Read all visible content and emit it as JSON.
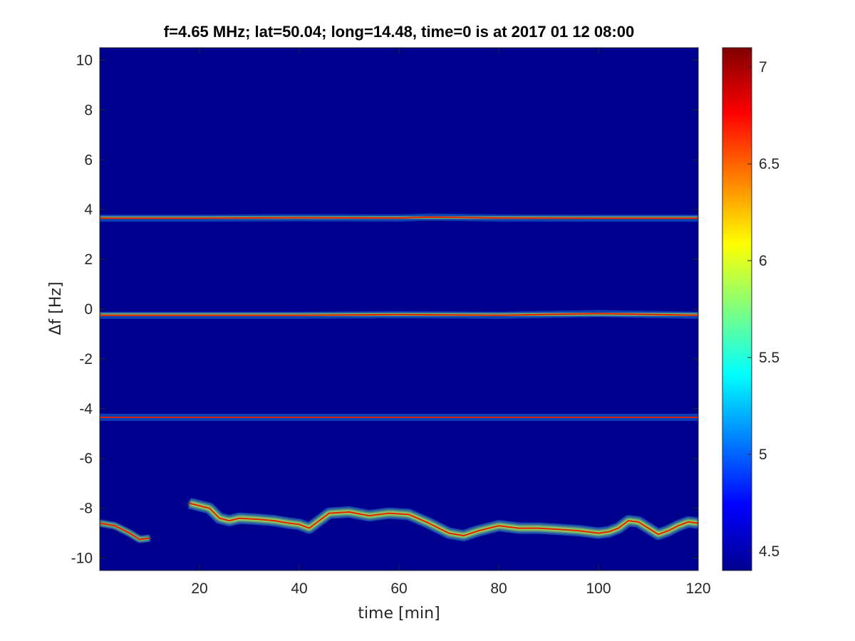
{
  "chart_data": {
    "type": "heatmap",
    "title": "f=4.65 MHz;  lat=50.04; long=14.48, time=0 is at 2017 01 12 08:00",
    "xlabel": "time [min]",
    "ylabel": "Δf [Hz]",
    "xlim": [
      0,
      120
    ],
    "ylim": [
      -10.5,
      10.5
    ],
    "xticks": [
      20,
      40,
      60,
      80,
      100,
      120
    ],
    "yticks": [
      10,
      8,
      6,
      4,
      2,
      0,
      -2,
      -4,
      -6,
      -8,
      -10
    ],
    "xtick_labels": [
      "20",
      "40",
      "60",
      "80",
      "100",
      "120"
    ],
    "ytick_labels": [
      "10",
      "8",
      "6",
      "4",
      "2",
      "0",
      "-2",
      "-4",
      "-6",
      "-8",
      "-10"
    ],
    "colormap": "jet",
    "background_color": "#00008f",
    "colorbar": {
      "range": [
        4.4,
        7.1
      ],
      "ticks": [
        4.5,
        5,
        5.5,
        6,
        6.5,
        7
      ],
      "tick_labels": [
        "4.5",
        "5",
        "5.5",
        "6",
        "6.5",
        "7"
      ]
    },
    "series": [
      {
        "values": [
          [
            0,
            3.65
          ],
          [
            20,
            3.65
          ],
          [
            40,
            3.67
          ],
          [
            60,
            3.66
          ],
          [
            66,
            3.7
          ],
          [
            80,
            3.66
          ],
          [
            100,
            3.65
          ],
          [
            120,
            3.65
          ]
        ]
      },
      {
        "values": [
          [
            0,
            -0.25
          ],
          [
            20,
            -0.25
          ],
          [
            40,
            -0.25
          ],
          [
            60,
            -0.22
          ],
          [
            80,
            -0.25
          ],
          [
            100,
            -0.18
          ],
          [
            120,
            -0.25
          ]
        ]
      },
      {
        "values": [
          [
            0,
            -4.35
          ],
          [
            20,
            -4.35
          ],
          [
            40,
            -4.35
          ],
          [
            60,
            -4.35
          ],
          [
            80,
            -4.35
          ],
          [
            100,
            -4.35
          ],
          [
            120,
            -4.35
          ]
        ]
      },
      {
        "values": [
          [
            0,
            -8.6
          ],
          [
            3,
            -8.7
          ],
          [
            6,
            -9.0
          ],
          [
            8,
            -9.25
          ],
          [
            10,
            -9.2
          ]
        ]
      },
      {
        "values": [
          [
            18,
            -7.8
          ],
          [
            20,
            -7.9
          ],
          [
            22,
            -8.0
          ],
          [
            24,
            -8.4
          ],
          [
            26,
            -8.5
          ],
          [
            28,
            -8.4
          ],
          [
            32,
            -8.45
          ],
          [
            35,
            -8.5
          ],
          [
            38,
            -8.6
          ],
          [
            40,
            -8.65
          ],
          [
            42,
            -8.8
          ],
          [
            44,
            -8.5
          ],
          [
            46,
            -8.2
          ],
          [
            50,
            -8.15
          ],
          [
            54,
            -8.3
          ],
          [
            58,
            -8.2
          ],
          [
            62,
            -8.25
          ],
          [
            66,
            -8.6
          ],
          [
            70,
            -9.0
          ],
          [
            73,
            -9.1
          ],
          [
            76,
            -8.9
          ],
          [
            80,
            -8.7
          ],
          [
            84,
            -8.8
          ],
          [
            88,
            -8.8
          ],
          [
            92,
            -8.85
          ],
          [
            96,
            -8.9
          ],
          [
            100,
            -9.0
          ],
          [
            102,
            -8.95
          ],
          [
            104,
            -8.8
          ],
          [
            106,
            -8.5
          ],
          [
            108,
            -8.55
          ],
          [
            110,
            -8.8
          ],
          [
            112,
            -9.05
          ],
          [
            114,
            -8.9
          ],
          [
            116,
            -8.7
          ],
          [
            118,
            -8.55
          ],
          [
            120,
            -8.6
          ]
        ]
      }
    ]
  }
}
